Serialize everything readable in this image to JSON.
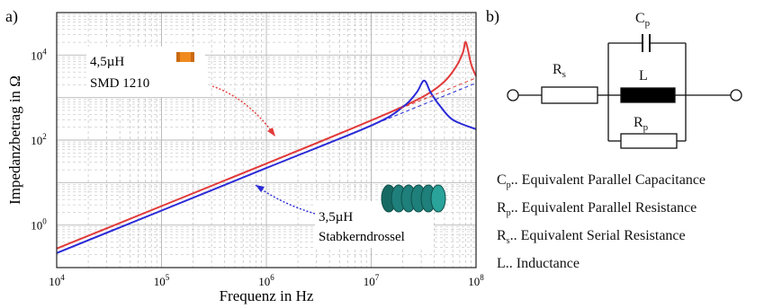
{
  "panel_a": {
    "label": "a)"
  },
  "panel_b": {
    "label": "b)"
  },
  "chart_data": {
    "type": "line",
    "xlabel": "Frequenz in Hz",
    "ylabel": "Impedanzbetrag in Ω",
    "xscale": "log",
    "yscale": "log",
    "xlim": [
      10000,
      100000000
    ],
    "ylim": [
      0.1,
      100000
    ],
    "grid": true,
    "x_ticks": [
      {
        "base": "10",
        "exp": "4"
      },
      {
        "base": "10",
        "exp": "5"
      },
      {
        "base": "10",
        "exp": "6"
      },
      {
        "base": "10",
        "exp": "7"
      },
      {
        "base": "10",
        "exp": "8"
      }
    ],
    "y_ticks": [
      {
        "value": 1,
        "base": "10",
        "exp": "0"
      },
      {
        "value": 100,
        "base": "10",
        "exp": "2"
      },
      {
        "value": 10000,
        "base": "10",
        "exp": "4"
      }
    ],
    "series": [
      {
        "name_lines": [
          "4,5µH",
          "SMD 1210"
        ],
        "color": "#e23a3a",
        "x": [
          10000,
          100000,
          1000000,
          10000000,
          30000000,
          50000000,
          65000000,
          75000000,
          80000000,
          90000000,
          100000000
        ],
        "y": [
          0.28,
          2.8,
          28,
          290,
          1000,
          2400,
          5500,
          11500,
          20000,
          6000,
          3200
        ]
      },
      {
        "name_lines": [
          "3,5µH",
          "Stabkerndrossel"
        ],
        "color": "#2a2ad8",
        "x": [
          10000,
          100000,
          1000000,
          10000000,
          20000000,
          27000000,
          32000000,
          37000000,
          45000000,
          60000000,
          100000000
        ],
        "y": [
          0.22,
          2.2,
          22,
          220,
          600,
          1300,
          2500,
          1300,
          650,
          300,
          180
        ]
      },
      {
        "name": "",
        "color": "#e23a3a",
        "style": "dashed",
        "x": [
          10000000,
          100000000
        ],
        "y": [
          290,
          2900
        ]
      },
      {
        "name": "",
        "color": "#2a2ad8",
        "style": "dashed",
        "x": [
          10000000,
          100000000
        ],
        "y": [
          220,
          2200
        ]
      }
    ]
  },
  "circuit": {
    "cp_label": {
      "base": "C",
      "sub": "p"
    },
    "rs_label": {
      "base": "R",
      "sub": "s"
    },
    "l_label": {
      "base": "L",
      "sub": ""
    },
    "rp_label": {
      "base": "R",
      "sub": "p"
    }
  },
  "legend": [
    {
      "base": "C",
      "sub": "p",
      "text": ".. Equivalent Parallel Capacitance"
    },
    {
      "base": "R",
      "sub": "p",
      "text": ".. Equivalent Parallel Resistance"
    },
    {
      "base": "R",
      "sub": "s",
      "text": ".. Equivalent Serial Resistance"
    },
    {
      "base": "L",
      "sub": "",
      "text": ".. Inductance"
    }
  ],
  "colors": {
    "grid": "#b5b5b5",
    "axis": "#222222",
    "smd_component": "#f08a1e",
    "coil": "#1f7f7a"
  },
  "icons": [
    "smd-component-icon",
    "coil-inductor-icon"
  ]
}
